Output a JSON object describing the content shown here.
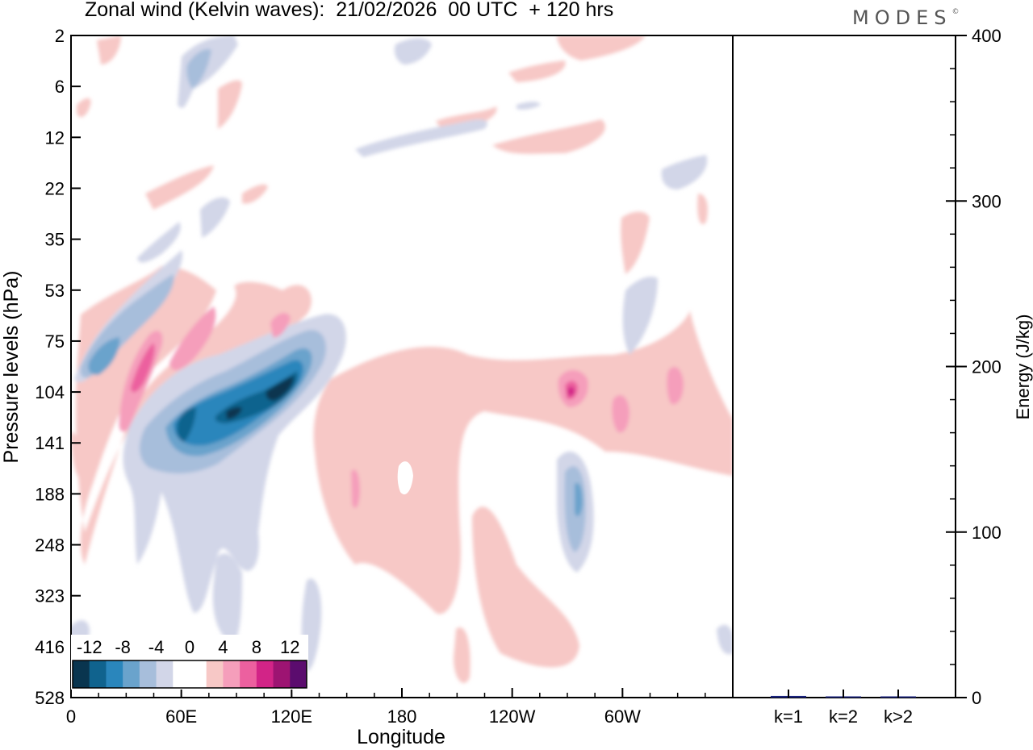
{
  "brand": "MODES",
  "brand_mark": "©",
  "chart_data": [
    {
      "type": "heatmap",
      "title": "Zonal wind (Kelvin waves):  21/02/2026  00 UTC  + 120 hrs",
      "xlabel": "Longitude",
      "ylabel": "Pressure levels (hPa)",
      "x_ticks": [
        "0",
        "60E",
        "120E",
        "180",
        "120W",
        "60W"
      ],
      "x_tick_values": [
        0,
        60,
        120,
        180,
        240,
        300
      ],
      "xlim": [
        0,
        360
      ],
      "y_ticks": [
        "2",
        "6",
        "12",
        "22",
        "35",
        "53",
        "75",
        "104",
        "141",
        "188",
        "248",
        "323",
        "416",
        "528"
      ],
      "y_axis": "pressure levels, equally spaced, top = 2 hPa, bottom = 528 hPa",
      "grid": false,
      "colorbar": {
        "labels": [
          "-12",
          "-8",
          "-4",
          "0",
          "4",
          "8",
          "12"
        ],
        "colors": [
          "#09354f",
          "#10638e",
          "#2a86bc",
          "#6aa3cc",
          "#a7bedb",
          "#d2d6e8",
          "#ffffff",
          "#ffffff",
          "#f7c8c6",
          "#f59ebb",
          "#ec609f",
          "#d22487",
          "#9d1472",
          "#5b0c6e"
        ],
        "placement": "bottom-left inside plot"
      },
      "features": [
        {
          "sign": "negative",
          "peak": -14,
          "lon": 105,
          "level": "104"
        },
        {
          "sign": "negative",
          "peak": -12,
          "lon": 60,
          "level": "120"
        },
        {
          "sign": "negative",
          "peak": -8,
          "lon": 17,
          "level": "85"
        },
        {
          "sign": "negative",
          "peak": -8,
          "lon": 277,
          "level": "188"
        },
        {
          "sign": "positive",
          "peak": 8,
          "lon": 38,
          "level": "90"
        },
        {
          "sign": "positive",
          "peak": 6,
          "lon": 65,
          "level": "70"
        },
        {
          "sign": "positive",
          "peak": 10,
          "lon": 273,
          "level": "104"
        },
        {
          "sign": "positive",
          "peak": 4,
          "lon": 320,
          "level": "100"
        },
        {
          "sign": "positive",
          "peak": 4,
          "lon": 200,
          "level": "150"
        }
      ]
    },
    {
      "type": "bar",
      "ylabel": "Energy (J/kg)",
      "categories": [
        "k=1",
        "k=2",
        "k>2"
      ],
      "values": [
        1,
        0.5,
        0.5
      ],
      "ylim": [
        0,
        400
      ],
      "y_ticks": [
        "0",
        "100",
        "200",
        "300",
        "400"
      ],
      "bar_color": "#1a237e"
    }
  ]
}
